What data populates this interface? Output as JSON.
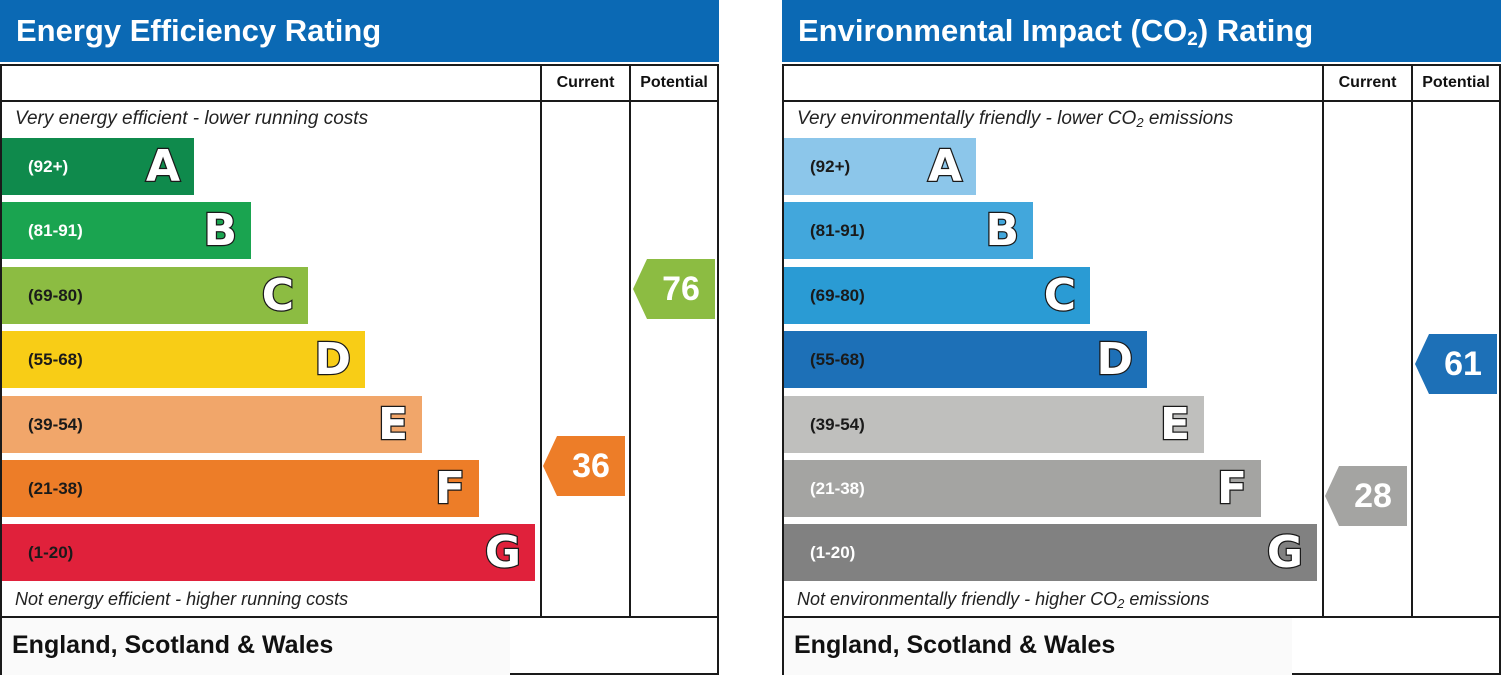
{
  "panels": [
    {
      "title": "Energy Efficiency Rating",
      "title_sub": "",
      "title_after": "",
      "col_current": "Current",
      "col_potential": "Potential",
      "top_note": "Very energy efficient - lower running costs",
      "bottom_note": "Not energy efficient - higher running costs",
      "footer": "England, Scotland & Wales"
    },
    {
      "title": "Environmental Impact (CO",
      "title_sub": "2",
      "title_after": ") Rating",
      "col_current": "Current",
      "col_potential": "Potential",
      "top_note": "Very environmentally friendly - lower CO",
      "top_note_sub": "2",
      "top_note_after": " emissions",
      "bottom_note": "Not environmentally friendly - higher CO",
      "bottom_note_sub": "2",
      "bottom_note_after": " emissions",
      "footer": "England, Scotland & Wales"
    }
  ],
  "chart_data": [
    {
      "type": "bar",
      "title": "Energy Efficiency Rating",
      "bands": [
        {
          "range": "(92+)",
          "letter": "A",
          "min": 92,
          "max": 100,
          "color": "#0f8a4c",
          "text_color": "#ffffff"
        },
        {
          "range": "(81-91)",
          "letter": "B",
          "min": 81,
          "max": 91,
          "color": "#1aa450",
          "text_color": "#ffffff"
        },
        {
          "range": "(69-80)",
          "letter": "C",
          "min": 69,
          "max": 80,
          "color": "#8cbc42",
          "text_color": "#1a1a1a"
        },
        {
          "range": "(55-68)",
          "letter": "D",
          "min": 55,
          "max": 68,
          "color": "#f8cd16",
          "text_color": "#1a1a1a"
        },
        {
          "range": "(39-54)",
          "letter": "E",
          "min": 39,
          "max": 54,
          "color": "#f1a66a",
          "text_color": "#1a1a1a"
        },
        {
          "range": "(21-38)",
          "letter": "F",
          "min": 21,
          "max": 38,
          "color": "#ed7d28",
          "text_color": "#1a1a1a"
        },
        {
          "range": "(1-20)",
          "letter": "G",
          "min": 1,
          "max": 20,
          "color": "#e0213b",
          "text_color": "#1a1a1a"
        }
      ],
      "current": {
        "value": 36,
        "label": "36",
        "color": "#ed7d28"
      },
      "potential": {
        "value": 76,
        "label": "76",
        "color": "#8cbc42"
      }
    },
    {
      "type": "bar",
      "title": "Environmental Impact (CO2) Rating",
      "bands": [
        {
          "range": "(92+)",
          "letter": "A",
          "min": 92,
          "max": 100,
          "color": "#8cc6ea",
          "text_color": "#1a1a1a"
        },
        {
          "range": "(81-91)",
          "letter": "B",
          "min": 81,
          "max": 91,
          "color": "#42a7dc",
          "text_color": "#1a1a1a"
        },
        {
          "range": "(69-80)",
          "letter": "C",
          "min": 69,
          "max": 80,
          "color": "#2a9bd4",
          "text_color": "#1a1a1a"
        },
        {
          "range": "(55-68)",
          "letter": "D",
          "min": 55,
          "max": 68,
          "color": "#1d70b7",
          "text_color": "#1a1a1a"
        },
        {
          "range": "(39-54)",
          "letter": "E",
          "min": 39,
          "max": 54,
          "color": "#bfbfbd",
          "text_color": "#1a1a1a"
        },
        {
          "range": "(21-38)",
          "letter": "F",
          "min": 21,
          "max": 38,
          "color": "#a4a4a2",
          "text_color": "#ffffff"
        },
        {
          "range": "(1-20)",
          "letter": "G",
          "min": 1,
          "max": 20,
          "color": "#818181",
          "text_color": "#ffffff"
        }
      ],
      "current": {
        "value": 28,
        "label": "28",
        "color": "#a4a4a2"
      },
      "potential": {
        "value": 61,
        "label": "61",
        "color": "#1d70b7"
      }
    }
  ]
}
